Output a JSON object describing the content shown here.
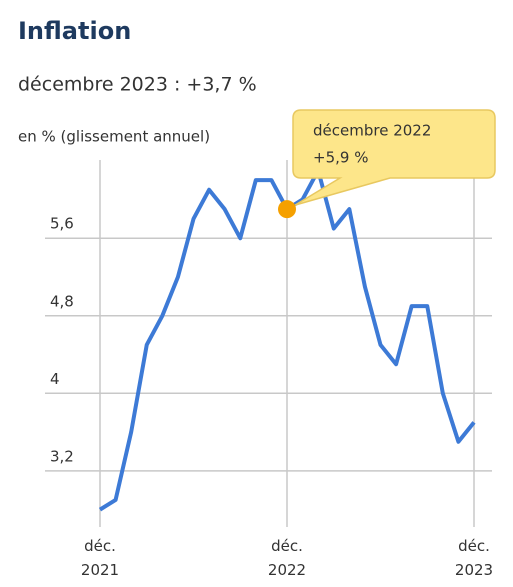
{
  "chart_data": {
    "type": "line",
    "title": "Inflation",
    "subtitle": "décembre 2023 : +3,7 %",
    "y_label": "en % (glissement annuel)",
    "categories": [
      "déc. 2021",
      null,
      null,
      null,
      null,
      null,
      null,
      null,
      null,
      null,
      null,
      null,
      "déc. 2022",
      null,
      null,
      null,
      null,
      null,
      null,
      null,
      null,
      null,
      null,
      null,
      "déc. 2023"
    ],
    "series": [
      {
        "color": "#3d7ad6",
        "values": [
          2.8,
          2.9,
          3.6,
          4.5,
          4.8,
          5.2,
          5.8,
          6.1,
          5.9,
          5.6,
          6.2,
          6.2,
          5.9,
          6.0,
          6.3,
          5.7,
          5.9,
          5.1,
          4.5,
          4.3,
          4.9,
          4.9,
          4.0,
          3.5,
          3.7
        ]
      }
    ],
    "ylim": [
      2.6,
      6.5
    ],
    "yticks": [
      {
        "value": 3.2,
        "label": "3,2"
      },
      4,
      {
        "value": 4.8,
        "label": "4,8"
      },
      {
        "value": 5.6,
        "label": "5,6"
      }
    ],
    "grid": true,
    "annotation": {
      "index": 12,
      "title": "décembre 2022",
      "value_label": "+5,9 %",
      "color": "#f5a000"
    }
  }
}
